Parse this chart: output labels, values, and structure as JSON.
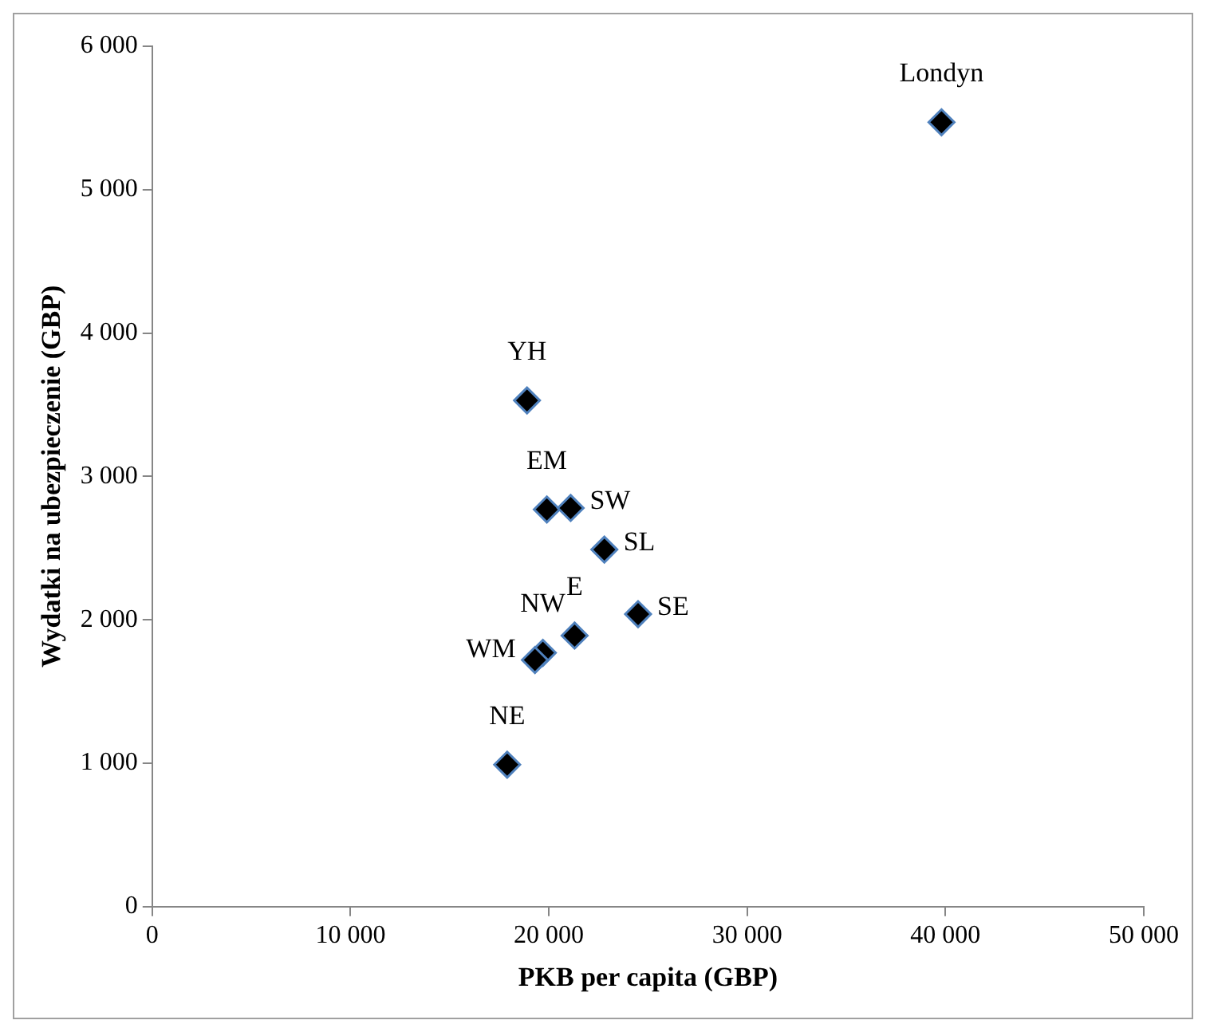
{
  "chart_data": {
    "type": "scatter",
    "xlabel": "PKB per capita (GBP)",
    "ylabel": "Wydatki na ubezpieczenie (GBP)",
    "x": [
      39800,
      18900,
      19900,
      21100,
      22800,
      24500,
      21300,
      19700,
      19300,
      17900
    ],
    "values": [
      5470,
      3530,
      2770,
      2780,
      2490,
      2040,
      1890,
      1770,
      1720,
      990
    ],
    "value_labels": [
      "Londyn",
      "YH",
      "EM",
      "SW",
      "SL",
      "SE",
      "E",
      "NW",
      "WM",
      "NE"
    ],
    "color": "#000000",
    "xlim": [
      0,
      50000
    ],
    "xticks": [
      {
        "value": 0,
        "label": "0"
      },
      {
        "value": 10000,
        "label": "10 000"
      },
      {
        "value": 20000,
        "label": "20 000"
      },
      {
        "value": 30000,
        "label": "30 000"
      },
      {
        "value": 40000,
        "label": "40 000"
      },
      {
        "value": 50000,
        "label": "50 000"
      }
    ],
    "ylim": [
      0,
      6000
    ],
    "yticks": [
      {
        "value": 0,
        "label": "0"
      },
      {
        "value": 1000,
        "label": "1 000"
      },
      {
        "value": 2000,
        "label": "2 000"
      },
      {
        "value": 3000,
        "label": "3 000"
      },
      {
        "value": 4000,
        "label": "4 000"
      },
      {
        "value": 5000,
        "label": "5 000"
      },
      {
        "value": 6000,
        "label": "6 000"
      }
    ],
    "grid": false,
    "legend": false,
    "marker": "diamond"
  }
}
